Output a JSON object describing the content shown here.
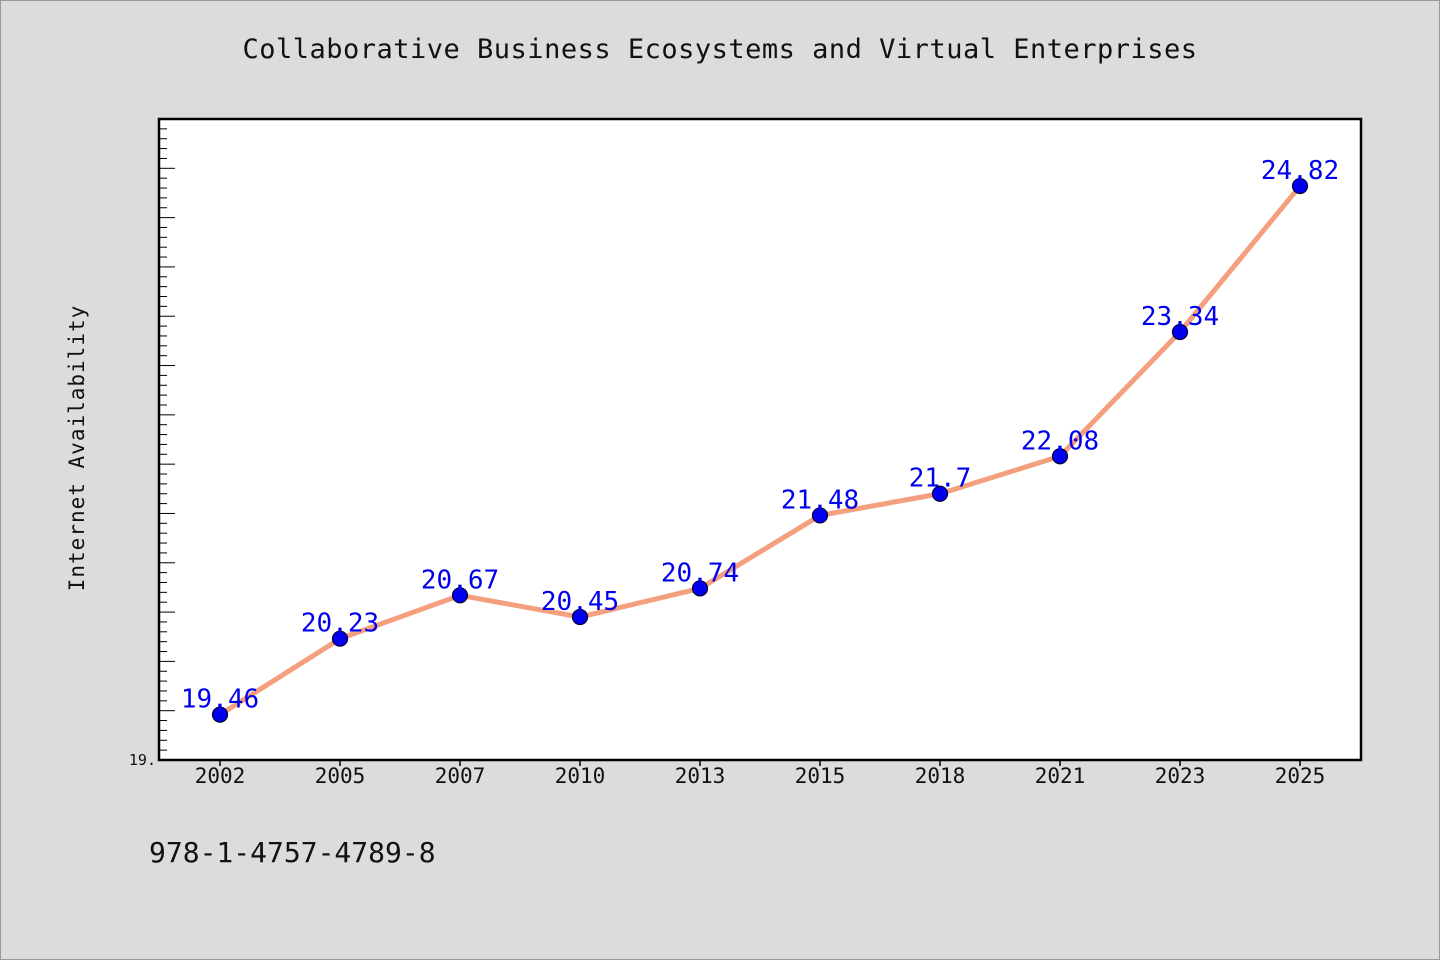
{
  "chart_data": {
    "type": "line",
    "title": "Collaborative Business Ecosystems and Virtual Enterprises",
    "xlabel": "",
    "ylabel": "Internet Availability",
    "categories": [
      "2002",
      "2005",
      "2007",
      "2010",
      "2013",
      "2015",
      "2018",
      "2021",
      "2023",
      "2025"
    ],
    "series": [
      {
        "values": [
          19.46,
          20.23,
          20.67,
          20.45,
          20.74,
          21.48,
          21.7,
          22.08,
          23.34,
          24.82
        ]
      }
    ],
    "ylim": [
      19.0,
      25.5
    ],
    "y_axis_bottom_label": "19.",
    "data_labels": [
      "19.46",
      "20.23",
      "20.67",
      "20.45",
      "20.74",
      "21.48",
      "21.7",
      "22.08",
      "23.34",
      "24.82"
    ],
    "grid": false,
    "legend": "none",
    "colors": {
      "line": "#f4a07e",
      "marker": "#0000ee",
      "marker_edge": "#000033",
      "data_label": "#0000ee",
      "plot_background": "#ffffff",
      "figure_background": "#dcdcdc"
    }
  },
  "footer": {
    "code": "978-1-4757-4789-8"
  }
}
